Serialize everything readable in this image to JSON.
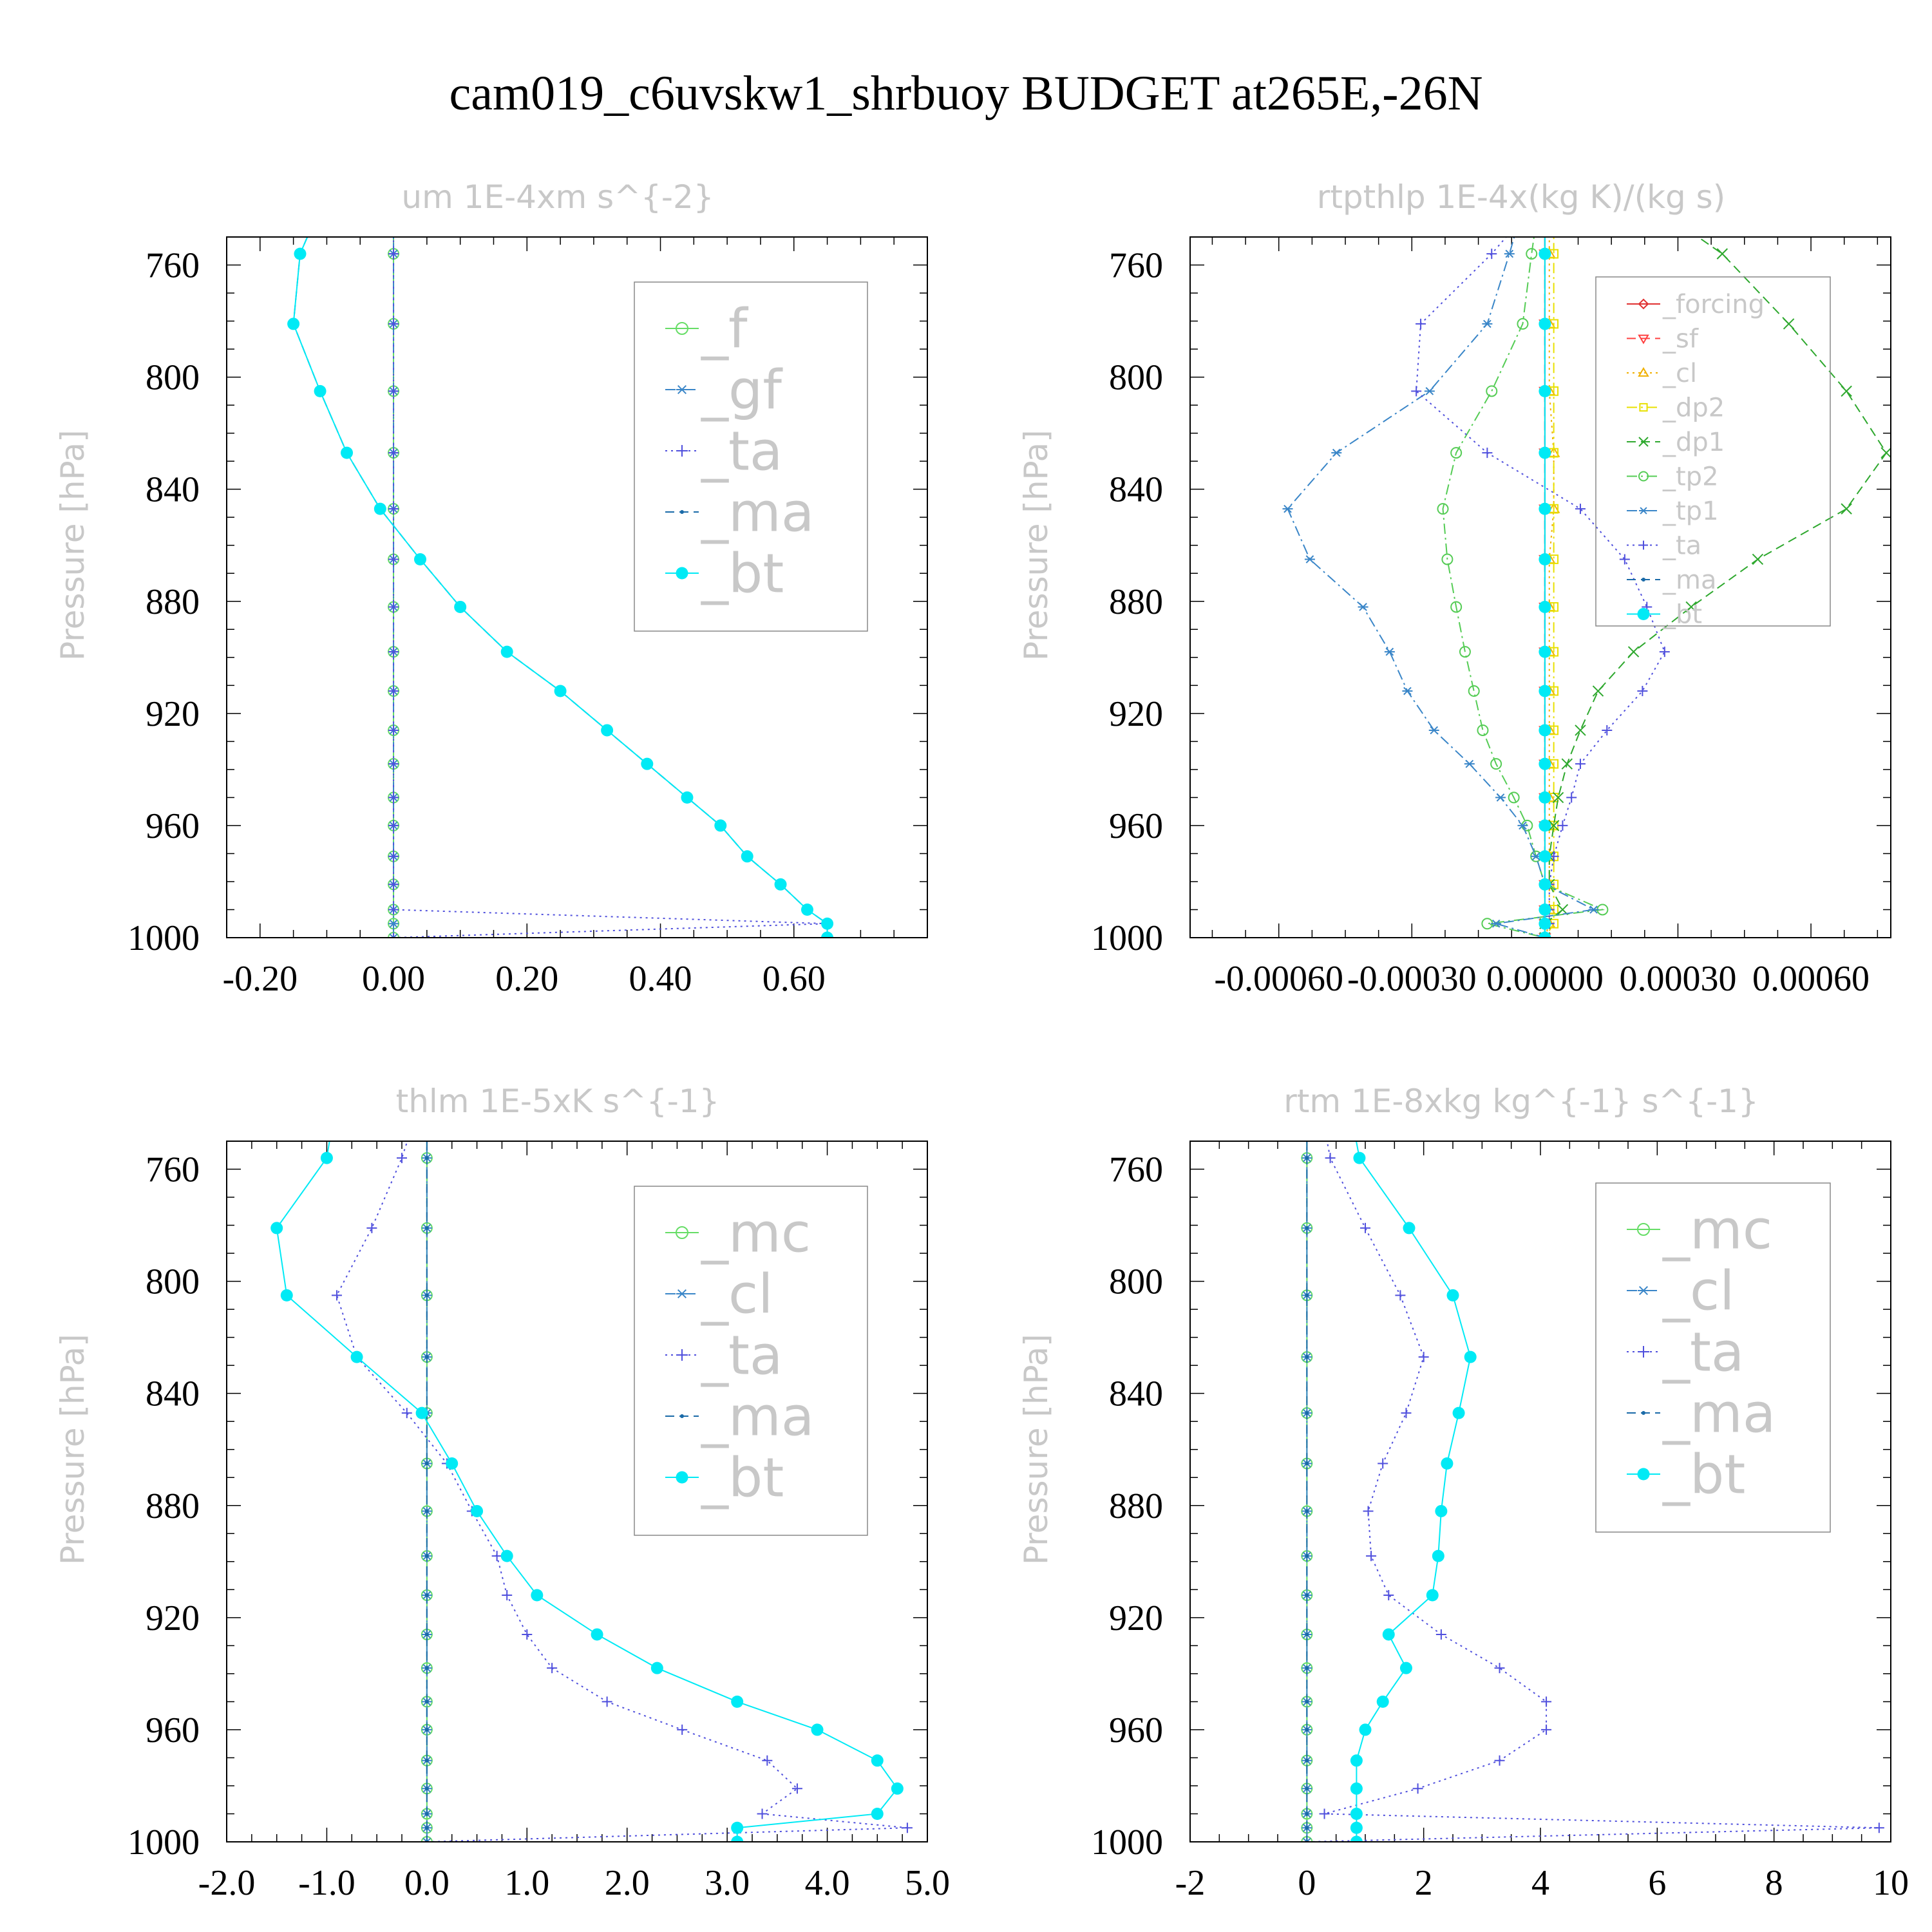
{
  "title": "cam019_c6uvskw1_shrbuoy  BUDGET at265E,-26N",
  "chart_data": [
    {
      "type": "line",
      "title": "um   1E-4xm s^{-2}",
      "ylabel": "Pressure [hPa]",
      "xlim": [
        -0.25,
        0.8
      ],
      "xticks": [
        -0.2,
        0.0,
        0.2,
        0.4,
        0.6
      ],
      "xticklabels": [
        "-0.20",
        "0.00",
        "0.20",
        "0.40",
        "0.60"
      ],
      "ylim": [
        1000,
        750
      ],
      "yticks": [
        760,
        800,
        840,
        880,
        920,
        960,
        1000
      ],
      "legend_position": "top-right",
      "legend_font": 84,
      "pressure": [
        745,
        756,
        781,
        805,
        827,
        847,
        865,
        882,
        898,
        912,
        926,
        938,
        950,
        960,
        971,
        981,
        990,
        995,
        1000
      ],
      "series": [
        {
          "name": "_f",
          "color": "#66dd66",
          "dash": "none",
          "marker": "circle-open",
          "values": [
            0,
            0,
            0,
            0,
            0,
            0,
            0,
            0,
            0,
            0,
            0,
            0,
            0,
            0,
            0,
            0,
            0,
            0,
            0
          ]
        },
        {
          "name": "_gf",
          "color": "#3a86c8",
          "dash": "dashdot",
          "marker": "asterisk",
          "values": [
            0,
            0,
            0,
            0,
            0,
            0,
            0,
            0,
            0,
            0,
            0,
            0,
            0,
            0,
            0,
            0,
            0,
            0,
            0
          ]
        },
        {
          "name": "_ta",
          "color": "#5050dd",
          "dash": "dot",
          "marker": "plus",
          "values": [
            0,
            0,
            0,
            0,
            0,
            0,
            0,
            0,
            0,
            0,
            0,
            0,
            0,
            0,
            0,
            0,
            0,
            0.65,
            0
          ]
        },
        {
          "name": "_ma",
          "color": "#1a6aa8",
          "dash": "dash",
          "marker": "dot",
          "values": [
            -0.12,
            -0.14,
            -0.15,
            -0.11,
            -0.07,
            -0.02,
            0.04,
            0.1,
            0.17,
            0.25,
            0.32,
            0.38,
            0.44,
            0.49,
            0.53,
            0.58,
            0.62,
            0.65,
            0.65
          ]
        },
        {
          "name": "_bt",
          "color": "#00eaf5",
          "dash": "none",
          "marker": "filled",
          "values": [
            -0.12,
            -0.14,
            -0.15,
            -0.11,
            -0.07,
            -0.02,
            0.04,
            0.1,
            0.17,
            0.25,
            0.32,
            0.38,
            0.44,
            0.49,
            0.53,
            0.58,
            0.62,
            0.65,
            0.65
          ]
        }
      ]
    },
    {
      "type": "line",
      "title": "rtpthlp   1E-4x(kg K)/(kg s)",
      "ylabel": "Pressure [hPa]",
      "xlim": [
        -0.0008,
        0.00078
      ],
      "xticks": [
        -0.0006,
        -0.0003,
        0.0,
        0.0003,
        0.0006
      ],
      "xticklabels": [
        "-0.00060",
        "-0.00030",
        "0.00000",
        "0.00030",
        "0.00060"
      ],
      "ylim": [
        1000,
        750
      ],
      "yticks": [
        760,
        800,
        840,
        880,
        920,
        960,
        1000
      ],
      "legend_position": "top-right",
      "legend_font": 40,
      "pressure": [
        745,
        756,
        781,
        805,
        827,
        847,
        865,
        882,
        898,
        912,
        926,
        938,
        950,
        960,
        971,
        981,
        990,
        995,
        1000
      ],
      "series": [
        {
          "name": "_forcing",
          "color": "#e03030",
          "dash": "none",
          "marker": "diamond-open",
          "values": [
            0,
            0,
            0,
            0,
            0,
            0,
            0,
            0,
            0,
            0,
            0,
            0,
            0,
            0,
            0,
            0,
            0,
            0,
            0
          ]
        },
        {
          "name": "_sf",
          "color": "#ff4040",
          "dash": "dash",
          "marker": "triangle-down",
          "values": [
            0,
            0,
            0,
            0,
            0,
            0,
            0,
            0,
            0,
            0,
            0,
            0,
            0,
            0,
            0,
            0,
            0,
            0,
            0
          ]
        },
        {
          "name": "_cl",
          "color": "#f0b000",
          "dash": "dot",
          "marker": "triangle-up",
          "values": [
            1e-05,
            1e-05,
            1e-05,
            1e-05,
            2e-05,
            2e-05,
            1e-05,
            1e-05,
            1e-05,
            1e-05,
            1e-05,
            1e-05,
            1e-05,
            1e-05,
            1e-05,
            1e-05,
            1e-05,
            1e-05,
            0.0
          ]
        },
        {
          "name": "_dp2",
          "color": "#e8e000",
          "dash": "dashdot",
          "marker": "square-open",
          "values": [
            2e-05,
            2e-05,
            2e-05,
            2e-05,
            2e-05,
            2e-05,
            2e-05,
            2e-05,
            2e-05,
            2e-05,
            2e-05,
            2e-05,
            2e-05,
            2e-05,
            2e-05,
            2e-05,
            2e-05,
            2e-05,
            0.0
          ]
        },
        {
          "name": "_dp1",
          "color": "#2ea82e",
          "dash": "dash",
          "marker": "x",
          "values": [
            0.0003,
            0.0004,
            0.00055,
            0.00068,
            0.00077,
            0.00068,
            0.00048,
            0.00033,
            0.0002,
            0.00012,
            8e-05,
            5e-05,
            3e-05,
            2e-05,
            1e-05,
            1e-05,
            4e-05,
            0.0,
            0.0
          ]
        },
        {
          "name": "_tp2",
          "color": "#55cc55",
          "dash": "dashdot",
          "marker": "circle-open",
          "values": [
            -2e-05,
            -3e-05,
            -5e-05,
            -0.00012,
            -0.0002,
            -0.00023,
            -0.00022,
            -0.0002,
            -0.00018,
            -0.00016,
            -0.00014,
            -0.00011,
            -7e-05,
            -4e-05,
            -2e-05,
            0.0,
            0.00013,
            -0.00013,
            0.0
          ]
        },
        {
          "name": "_tp1",
          "color": "#3a86c8",
          "dash": "dashdot",
          "marker": "asterisk",
          "values": [
            -6e-05,
            -8e-05,
            -0.00013,
            -0.00026,
            -0.00047,
            -0.00058,
            -0.00053,
            -0.00041,
            -0.00035,
            -0.00031,
            -0.00025,
            -0.00017,
            -0.0001,
            -5e-05,
            -2e-05,
            0.0,
            0.00011,
            -0.00011,
            0.0
          ]
        },
        {
          "name": "_ta",
          "color": "#5050dd",
          "dash": "dot",
          "marker": "plus",
          "values": [
            -6e-05,
            -0.00012,
            -0.00028,
            -0.00029,
            -0.00013,
            8e-05,
            0.00018,
            0.00023,
            0.00027,
            0.00022,
            0.00014,
            8e-05,
            6e-05,
            4e-05,
            2e-05,
            1e-05,
            1e-05,
            1e-05,
            0.0
          ]
        },
        {
          "name": "_ma",
          "color": "#1a6aa8",
          "dash": "dash",
          "marker": "dot",
          "values": [
            0,
            0,
            0,
            0,
            0,
            0,
            0,
            0,
            0,
            0,
            0,
            0,
            0,
            0,
            0,
            0,
            0,
            0,
            0
          ]
        },
        {
          "name": "_bt",
          "color": "#00eaf5",
          "dash": "none",
          "marker": "filled",
          "values": [
            0,
            0,
            0,
            0,
            0,
            0,
            0,
            0,
            0,
            0,
            0,
            0,
            0,
            0,
            0,
            0,
            0,
            0,
            0
          ]
        }
      ]
    },
    {
      "type": "line",
      "title": "thlm   1E-5xK s^{-1}",
      "ylabel": "Pressure [hPa]",
      "xlim": [
        -2.0,
        5.0
      ],
      "xticks": [
        -2.0,
        -1.0,
        0.0,
        1.0,
        2.0,
        3.0,
        4.0,
        5.0
      ],
      "xticklabels": [
        "-2.0",
        "-1.0",
        "0.0",
        "1.0",
        "2.0",
        "3.0",
        "4.0",
        "5.0"
      ],
      "ylim": [
        1000,
        750
      ],
      "yticks": [
        760,
        800,
        840,
        880,
        920,
        960,
        1000
      ],
      "legend_position": "top-right",
      "legend_font": 84,
      "pressure": [
        745,
        756,
        781,
        805,
        827,
        847,
        865,
        882,
        898,
        912,
        926,
        938,
        950,
        960,
        971,
        981,
        990,
        995,
        1000
      ],
      "series": [
        {
          "name": "_mc",
          "color": "#66dd66",
          "dash": "none",
          "marker": "circle-open",
          "values": [
            0,
            0,
            0,
            0,
            0,
            0,
            0,
            0,
            0,
            0,
            0,
            0,
            0,
            0,
            0,
            0,
            0,
            0,
            0
          ]
        },
        {
          "name": "_cl",
          "color": "#3a86c8",
          "dash": "dashdot",
          "marker": "asterisk",
          "values": [
            0,
            0,
            0,
            0,
            0,
            0,
            0,
            0,
            0,
            0,
            0,
            0,
            0,
            0,
            0,
            0,
            0,
            0,
            0
          ]
        },
        {
          "name": "_ta",
          "color": "#5050dd",
          "dash": "dot",
          "marker": "plus",
          "values": [
            -0.15,
            -0.25,
            -0.55,
            -0.9,
            -0.7,
            -0.2,
            0.2,
            0.45,
            0.7,
            0.8,
            1.0,
            1.25,
            1.8,
            2.55,
            3.4,
            3.7,
            3.35,
            4.8,
            0.0
          ]
        },
        {
          "name": "_ma",
          "color": "#1a6aa8",
          "dash": "dash",
          "marker": "dot",
          "values": [
            0,
            0,
            0,
            0,
            0,
            0,
            0,
            0,
            0,
            0,
            0,
            0,
            0,
            0,
            0,
            0,
            0,
            0,
            0
          ]
        },
        {
          "name": "_bt",
          "color": "#00eaf5",
          "dash": "none",
          "marker": "filled",
          "values": [
            -0.95,
            -1.0,
            -1.5,
            -1.4,
            -0.7,
            -0.05,
            0.25,
            0.5,
            0.8,
            1.1,
            1.7,
            2.3,
            3.1,
            3.9,
            4.5,
            4.7,
            4.5,
            3.1,
            3.1
          ]
        }
      ]
    },
    {
      "type": "line",
      "title": "rtm   1E-8xkg kg^{-1} s^{-1}",
      "ylabel": "Pressure [hPa]",
      "xlim": [
        -2,
        10
      ],
      "xticks": [
        -2,
        0,
        2,
        4,
        6,
        8,
        10
      ],
      "xticklabels": [
        "-2",
        "0",
        "2",
        "4",
        "6",
        "8",
        "10"
      ],
      "ylim": [
        1000,
        750
      ],
      "yticks": [
        760,
        800,
        840,
        880,
        920,
        960,
        1000
      ],
      "legend_position": "top-right",
      "legend_font": 84,
      "pressure": [
        745,
        756,
        781,
        805,
        827,
        847,
        865,
        882,
        898,
        912,
        926,
        938,
        950,
        960,
        971,
        981,
        990,
        995,
        1000
      ],
      "series": [
        {
          "name": "_mc",
          "color": "#66dd66",
          "dash": "none",
          "marker": "circle-open",
          "values": [
            0,
            0,
            0,
            0,
            0,
            0,
            0,
            0,
            0,
            0,
            0,
            0,
            0,
            0,
            0,
            0,
            0,
            0,
            0
          ]
        },
        {
          "name": "_cl",
          "color": "#3a86c8",
          "dash": "dashdot",
          "marker": "asterisk",
          "values": [
            0,
            0,
            0,
            0,
            0,
            0,
            0,
            0,
            0,
            0,
            0,
            0,
            0,
            0,
            0,
            0,
            0,
            0,
            0
          ]
        },
        {
          "name": "_ta",
          "color": "#5050dd",
          "dash": "dot",
          "marker": "plus",
          "values": [
            0.3,
            0.4,
            1.0,
            1.6,
            2.0,
            1.7,
            1.3,
            1.05,
            1.1,
            1.4,
            2.3,
            3.3,
            4.1,
            4.1,
            3.3,
            1.9,
            0.3,
            9.8,
            0.0
          ]
        },
        {
          "name": "_ma",
          "color": "#1a6aa8",
          "dash": "dash",
          "marker": "dot",
          "values": [
            0,
            0,
            0,
            0,
            0,
            0,
            0,
            0,
            0,
            0,
            0,
            0,
            0,
            0,
            0,
            0,
            0,
            0,
            0
          ]
        },
        {
          "name": "_bt",
          "color": "#00eaf5",
          "dash": "none",
          "marker": "filled",
          "values": [
            0.8,
            0.9,
            1.75,
            2.5,
            2.8,
            2.6,
            2.4,
            2.3,
            2.25,
            2.15,
            1.4,
            1.7,
            1.3,
            1.0,
            0.85,
            0.85,
            0.85,
            0.85,
            0.85
          ]
        }
      ]
    }
  ]
}
